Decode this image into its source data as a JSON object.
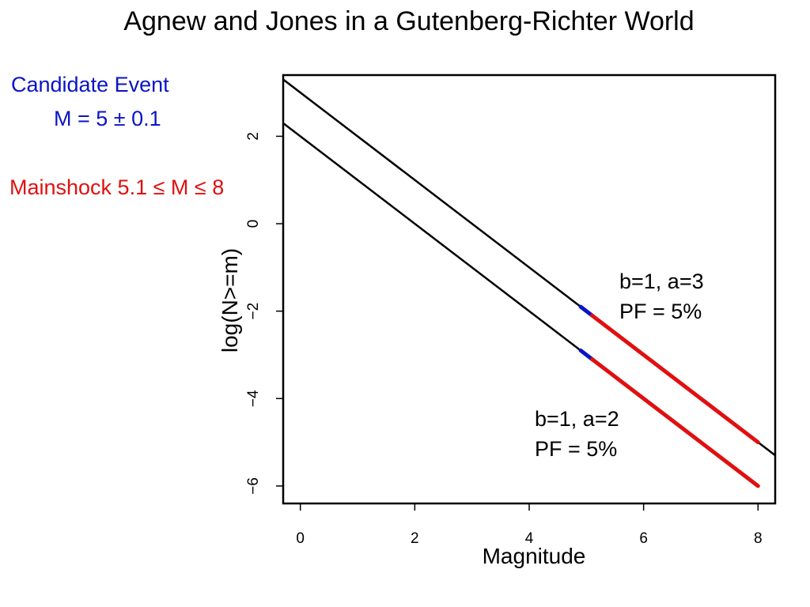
{
  "slide": {
    "title": "Agnew and Jones in a Gutenberg-Richter World",
    "candidate_title": "Candidate Event",
    "candidate_value": "M = 5 ± 0.1",
    "mainshock": "Mainshock  5.1 ≤ M ≤ 8"
  },
  "annotations": {
    "upper_line1": "b=1, a=3",
    "upper_line2": "PF = 5%",
    "lower_line1": "b=1, a=2",
    "lower_line2": "PF = 5%"
  },
  "colors": {
    "candidate": "#0a14c8",
    "mainshock": "#e01010",
    "line": "#000000"
  },
  "chart_data": {
    "type": "line",
    "xlabel": "Magnitude",
    "ylabel": "log(N>=m)",
    "xlim": [
      -0.3,
      8.3
    ],
    "ylim": [
      -6.4,
      3.4
    ],
    "xticks": [
      "0",
      "2",
      "4",
      "6",
      "8"
    ],
    "yticks": [
      "−6",
      "−4",
      "−2",
      "0",
      "2"
    ],
    "series": [
      {
        "x": [
          -0.3,
          8.3
        ],
        "y": [
          3.3,
          -5.3
        ],
        "color": "#000000"
      },
      {
        "x": [
          -0.3,
          8.0
        ],
        "y": [
          2.3,
          -6.0
        ],
        "color": "#000000"
      }
    ],
    "highlight_segments": [
      {
        "x": [
          4.9,
          5.1
        ],
        "y": [
          -1.9,
          -2.1
        ],
        "color": "#0a14c8"
      },
      {
        "x": [
          5.1,
          8.0
        ],
        "y": [
          -2.1,
          -5.0
        ],
        "color": "#e01010"
      },
      {
        "x": [
          4.9,
          5.1
        ],
        "y": [
          -2.9,
          -3.1
        ],
        "color": "#0a14c8"
      },
      {
        "x": [
          5.1,
          8.0
        ],
        "y": [
          -3.1,
          -6.0
        ],
        "color": "#e01010"
      }
    ]
  }
}
